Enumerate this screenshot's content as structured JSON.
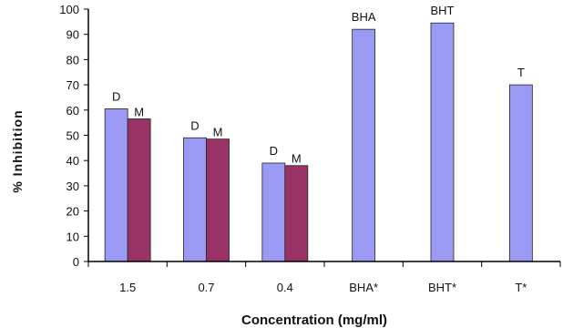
{
  "chart_data": {
    "type": "bar",
    "title": "",
    "xlabel": "Concentration (mg/ml)",
    "ylabel": "% Inhibition",
    "ylim": [
      0,
      100
    ],
    "yticks": [
      0,
      10,
      20,
      30,
      40,
      50,
      60,
      70,
      80,
      90,
      100
    ],
    "categories": [
      "1.5",
      "0.7",
      "0.4",
      "BHA*",
      "BHT*",
      "T*"
    ],
    "grid": false,
    "legend": "none",
    "series": [
      {
        "values": [
          60.5,
          49,
          39,
          92,
          94.5,
          70
        ],
        "color": "#9a9af5"
      },
      {
        "values": [
          56.5,
          48.5,
          38,
          null,
          null,
          null
        ],
        "color": "#993366"
      }
    ],
    "annotations": [
      {
        "text": "D",
        "category": 0,
        "series": 0
      },
      {
        "text": "M",
        "category": 0,
        "series": 1
      },
      {
        "text": "D",
        "category": 1,
        "series": 0
      },
      {
        "text": "M",
        "category": 1,
        "series": 1
      },
      {
        "text": "D",
        "category": 2,
        "series": 0
      },
      {
        "text": "M",
        "category": 2,
        "series": 1
      },
      {
        "text": "BHA",
        "category": 3,
        "series": 0
      },
      {
        "text": "BHT",
        "category": 4,
        "series": 0
      },
      {
        "text": "T",
        "category": 5,
        "series": 0
      }
    ]
  }
}
